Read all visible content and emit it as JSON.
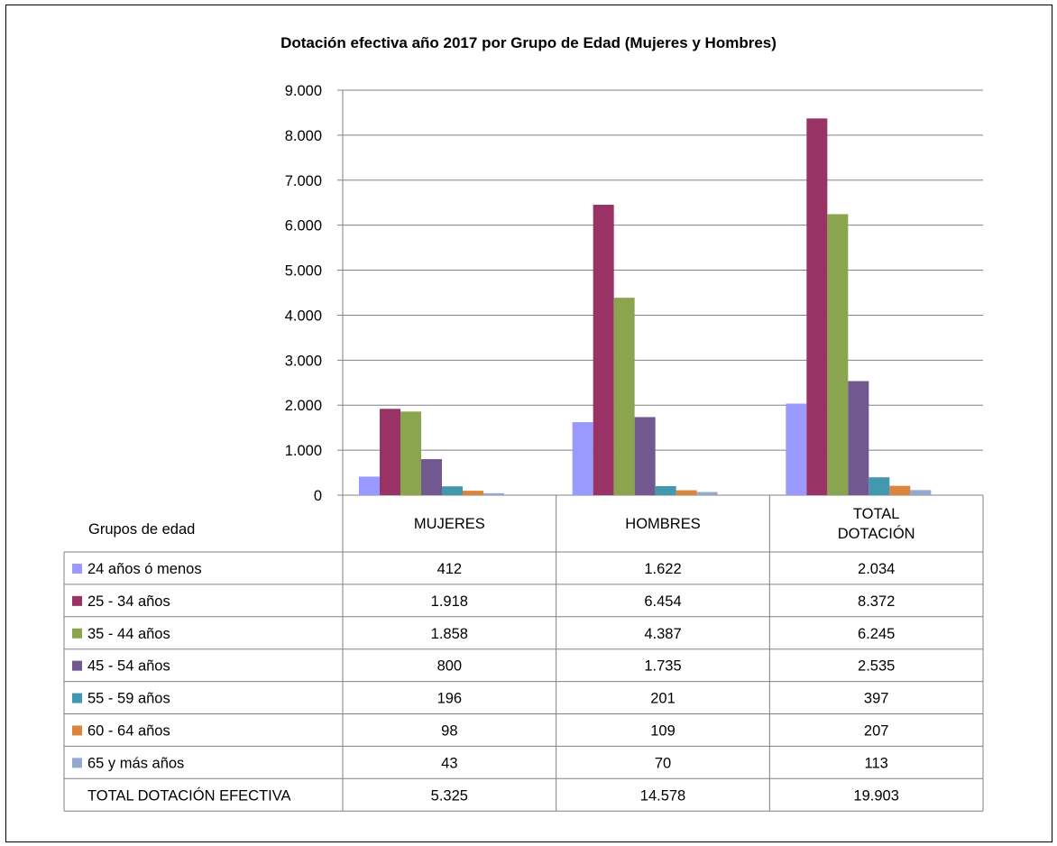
{
  "chart_data": {
    "type": "bar",
    "title": "Dotación efectiva año 2017 por Grupo de Edad (Mujeres y Hombres)",
    "categories": [
      "MUJERES",
      "HOMBRES",
      "TOTAL DOTACIÓN"
    ],
    "category_lines": [
      [
        "MUJERES"
      ],
      [
        "HOMBRES"
      ],
      [
        "TOTAL",
        "DOTACIÓN"
      ]
    ],
    "series": [
      {
        "name": "24 años ó menos",
        "color": "#9999FF",
        "values": [
          412,
          1622,
          2034
        ],
        "labels": [
          "412",
          "1.622",
          "2.034"
        ]
      },
      {
        "name": "25 - 34 años",
        "color": "#993366",
        "values": [
          1918,
          6454,
          8372
        ],
        "labels": [
          "1.918",
          "6.454",
          "8.372"
        ]
      },
      {
        "name": "35 - 44 años",
        "color": "#8BA54E",
        "values": [
          1858,
          4387,
          6245
        ],
        "labels": [
          "1.858",
          "4.387",
          "6.245"
        ]
      },
      {
        "name": "45 - 54 años",
        "color": "#71588F",
        "values": [
          800,
          1735,
          2535
        ],
        "labels": [
          "800",
          "1.735",
          "2.535"
        ]
      },
      {
        "name": "55 - 59 años",
        "color": "#4198AF",
        "values": [
          196,
          201,
          397
        ],
        "labels": [
          "196",
          "201",
          "397"
        ]
      },
      {
        "name": "60 - 64 años",
        "color": "#DB843D",
        "values": [
          98,
          109,
          207
        ],
        "labels": [
          "98",
          "109",
          "207"
        ]
      },
      {
        "name": "65  y más años",
        "color": "#93A9CF",
        "values": [
          43,
          70,
          113
        ],
        "labels": [
          "43",
          "70",
          "113"
        ]
      }
    ],
    "ylim": [
      0,
      9000
    ],
    "yticks": [
      0,
      1000,
      2000,
      3000,
      4000,
      5000,
      6000,
      7000,
      8000,
      9000
    ],
    "ytick_labels": [
      "0",
      "1.000",
      "2.000",
      "3.000",
      "4.000",
      "5.000",
      "6.000",
      "7.000",
      "8.000",
      "9.000"
    ],
    "grid": true,
    "legend": "data-table",
    "table_header_label": "Grupos de edad",
    "total_row": {
      "label": "TOTAL DOTACIÓN EFECTIVA",
      "values": [
        "5.325",
        "14.578",
        "19.903"
      ]
    }
  }
}
